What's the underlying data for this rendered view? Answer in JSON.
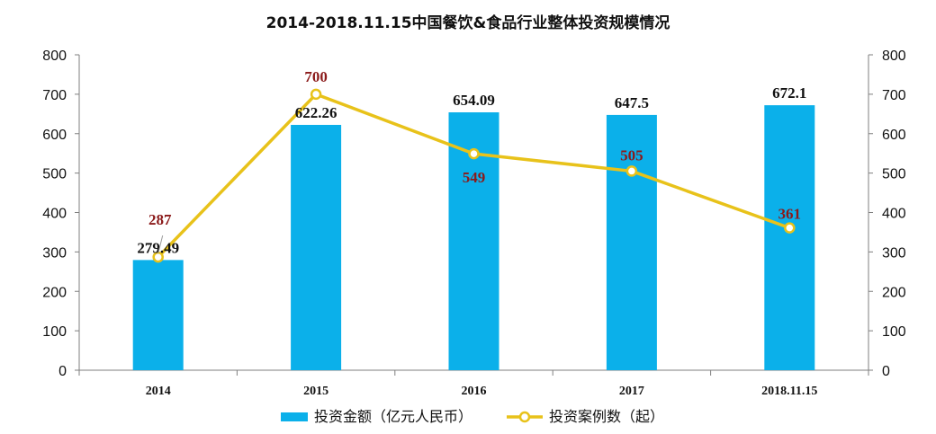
{
  "chart_data": {
    "type": "bar",
    "title": "2014-2018.11.15中国餐饮&食品行业整体投资规模情况",
    "categories": [
      "2014",
      "2015",
      "2016",
      "2017",
      "2018.11.15"
    ],
    "series": [
      {
        "name": "投资金额（亿元人民币）",
        "type": "bar",
        "axis": "left",
        "color": "#0bb0ea",
        "values": [
          279.49,
          622.26,
          654.09,
          647.5,
          672.1
        ],
        "labels": [
          "279.49",
          "622.26",
          "654.09",
          "647.5",
          "672.1"
        ]
      },
      {
        "name": "投资案例数（起）",
        "type": "line",
        "axis": "right",
        "color": "#e8c21a",
        "values": [
          287,
          700,
          549,
          505,
          361
        ],
        "labels": [
          "287",
          "700",
          "549",
          "505",
          "361"
        ]
      }
    ],
    "ylim": [
      0,
      800
    ],
    "y2lim": [
      0,
      800
    ],
    "yticks": [
      "0",
      "100",
      "200",
      "300",
      "400",
      "500",
      "600",
      "700",
      "800"
    ],
    "y2ticks": [
      "0",
      "100",
      "200",
      "300",
      "400",
      "500",
      "600",
      "700",
      "800"
    ],
    "grid": false,
    "legend_position": "bottom"
  }
}
